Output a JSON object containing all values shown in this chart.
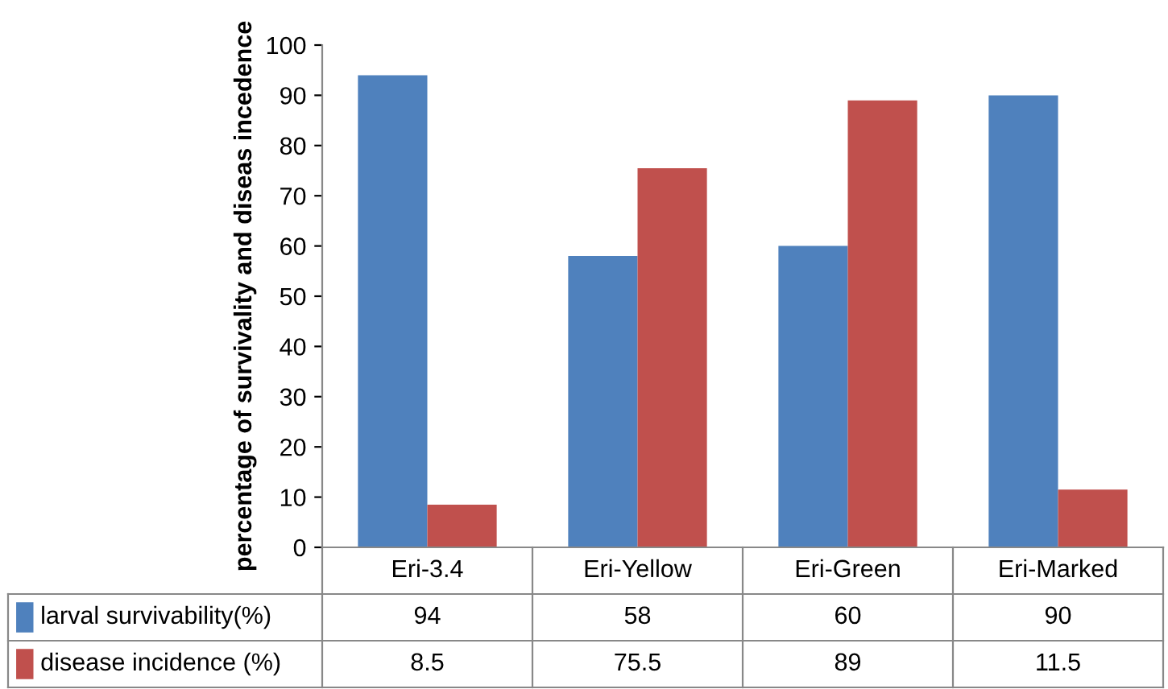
{
  "chart_data": {
    "type": "bar",
    "ylabel": "percentage of survivality and diseas incedence",
    "categories": [
      "Eri-3.4",
      "Eri-Yellow",
      "Eri-Green",
      "Eri-Marked"
    ],
    "series": [
      {
        "name": "larval survivability(%)",
        "color": "#4f81bd",
        "values": [
          94,
          58,
          60,
          90
        ]
      },
      {
        "name": "disease incidence (%)",
        "color": "#c0504d",
        "values": [
          8.5,
          75.5,
          89,
          11.5
        ]
      }
    ],
    "ylim": [
      0,
      100
    ],
    "yticks": [
      0,
      10,
      20,
      30,
      40,
      50,
      60,
      70,
      80,
      90,
      100
    ],
    "data_labels": true,
    "grid": false,
    "legend": "bottom"
  }
}
